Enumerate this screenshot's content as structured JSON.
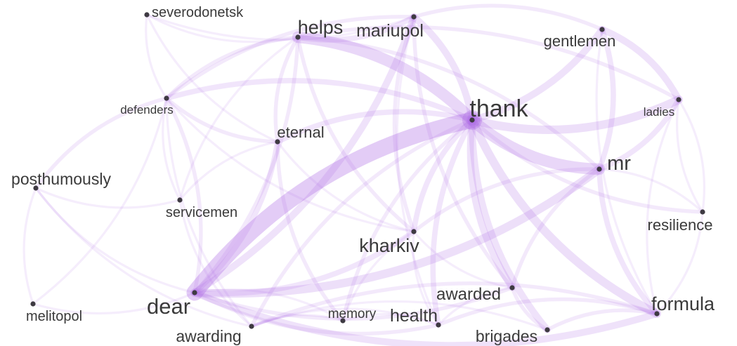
{
  "graph": {
    "nodes": [
      {
        "id": "severodonetsk",
        "label": "severodonetsk"
      },
      {
        "id": "helps",
        "label": "helps"
      },
      {
        "id": "mariupol",
        "label": "mariupol"
      },
      {
        "id": "gentlemen",
        "label": "gentlemen"
      },
      {
        "id": "defenders",
        "label": "defenders"
      },
      {
        "id": "thank",
        "label": "thank"
      },
      {
        "id": "ladies",
        "label": "ladies"
      },
      {
        "id": "eternal",
        "label": "eternal"
      },
      {
        "id": "posthumously",
        "label": "posthumously"
      },
      {
        "id": "mr",
        "label": "mr"
      },
      {
        "id": "servicemen",
        "label": "servicemen"
      },
      {
        "id": "resilience",
        "label": "resilience"
      },
      {
        "id": "kharkiv",
        "label": "kharkiv"
      },
      {
        "id": "dear",
        "label": "dear"
      },
      {
        "id": "awarded",
        "label": "awarded"
      },
      {
        "id": "formula",
        "label": "formula"
      },
      {
        "id": "melitopol",
        "label": "melitopol"
      },
      {
        "id": "memory",
        "label": "memory"
      },
      {
        "id": "health",
        "label": "health"
      },
      {
        "id": "awarding",
        "label": "awarding"
      },
      {
        "id": "brigades",
        "label": "brigades"
      }
    ],
    "edges": [
      [
        "thank",
        "dear",
        10
      ],
      [
        "thank",
        "helps",
        7
      ],
      [
        "thank",
        "mr",
        7
      ],
      [
        "thank",
        "formula",
        5
      ],
      [
        "thank",
        "ladies",
        5
      ],
      [
        "thank",
        "gentlemen",
        4
      ],
      [
        "thank",
        "mariupol",
        4
      ],
      [
        "thank",
        "brigades",
        4
      ],
      [
        "thank",
        "awarded",
        4
      ],
      [
        "thank",
        "kharkiv",
        3
      ],
      [
        "thank",
        "health",
        3
      ],
      [
        "thank",
        "defenders",
        3
      ],
      [
        "thank",
        "eternal",
        3
      ],
      [
        "thank",
        "resilience",
        2
      ],
      [
        "thank",
        "memory",
        2
      ],
      [
        "thank",
        "awarding",
        2
      ],
      [
        "dear",
        "mr",
        5
      ],
      [
        "dear",
        "mariupol",
        4
      ],
      [
        "dear",
        "formula",
        4
      ],
      [
        "dear",
        "kharkiv",
        3
      ],
      [
        "dear",
        "eternal",
        3
      ],
      [
        "dear",
        "defenders",
        2
      ],
      [
        "dear",
        "helps",
        2
      ],
      [
        "dear",
        "health",
        2
      ],
      [
        "dear",
        "awarded",
        2
      ],
      [
        "mr",
        "formula",
        3
      ],
      [
        "mr",
        "ladies",
        3
      ],
      [
        "mr",
        "gentlemen",
        3
      ],
      [
        "mr",
        "kharkiv",
        2
      ],
      [
        "mr",
        "awarded",
        2
      ],
      [
        "mr",
        "helps",
        2
      ],
      [
        "ladies",
        "gentlemen",
        4
      ],
      [
        "ladies",
        "helps",
        2
      ],
      [
        "gentlemen",
        "mariupol",
        2
      ],
      [
        "helps",
        "mariupol",
        3
      ],
      [
        "helps",
        "defenders",
        2
      ],
      [
        "helps",
        "kharkiv",
        2
      ],
      [
        "helps",
        "eternal",
        2
      ],
      [
        "mariupol",
        "kharkiv",
        2
      ],
      [
        "mariupol",
        "defenders",
        2
      ],
      [
        "mariupol",
        "awarded",
        2
      ],
      [
        "defenders",
        "eternal",
        2
      ],
      [
        "defenders",
        "posthumously",
        2
      ],
      [
        "defenders",
        "servicemen",
        1
      ],
      [
        "defenders",
        "awarding",
        1
      ],
      [
        "defenders",
        "kharkiv",
        1
      ],
      [
        "eternal",
        "memory",
        2
      ],
      [
        "eternal",
        "servicemen",
        1
      ],
      [
        "eternal",
        "kharkiv",
        1
      ],
      [
        "posthumously",
        "awarding",
        1
      ],
      [
        "posthumously",
        "servicemen",
        1
      ],
      [
        "posthumously",
        "melitopol",
        1
      ],
      [
        "posthumously",
        "dear",
        1
      ],
      [
        "servicemen",
        "awarding",
        1
      ],
      [
        "kharkiv",
        "awarded",
        1
      ],
      [
        "kharkiv",
        "health",
        1
      ],
      [
        "kharkiv",
        "memory",
        1
      ],
      [
        "awarded",
        "brigades",
        2
      ],
      [
        "awarded",
        "health",
        1
      ],
      [
        "formula",
        "brigades",
        2
      ],
      [
        "formula",
        "health",
        2
      ],
      [
        "formula",
        "awarding",
        2
      ],
      [
        "formula",
        "resilience",
        1
      ],
      [
        "health",
        "memory",
        1
      ],
      [
        "health",
        "awarding",
        1
      ],
      [
        "memory",
        "awarding",
        1
      ],
      [
        "memory",
        "dear",
        1
      ],
      [
        "brigades",
        "awarding",
        1
      ],
      [
        "resilience",
        "mr",
        1
      ],
      [
        "resilience",
        "ladies",
        1
      ],
      [
        "severodonetsk",
        "defenders",
        1
      ],
      [
        "severodonetsk",
        "helps",
        1
      ],
      [
        "severodonetsk",
        "mariupol",
        1
      ],
      [
        "severodonetsk",
        "eternal",
        1
      ],
      [
        "melitopol",
        "defenders",
        1
      ],
      [
        "melitopol",
        "dear",
        1
      ],
      [
        "gentlemen",
        "formula",
        1
      ],
      [
        "ladies",
        "formula",
        1
      ],
      [
        "ladies",
        "resilience",
        1
      ],
      [
        "mariupol",
        "health",
        1
      ],
      [
        "helps",
        "servicemen",
        1
      ]
    ],
    "colors": {
      "edge": "#b06ee6",
      "node": "#3e3a42",
      "label": "#3a3a3a"
    }
  }
}
